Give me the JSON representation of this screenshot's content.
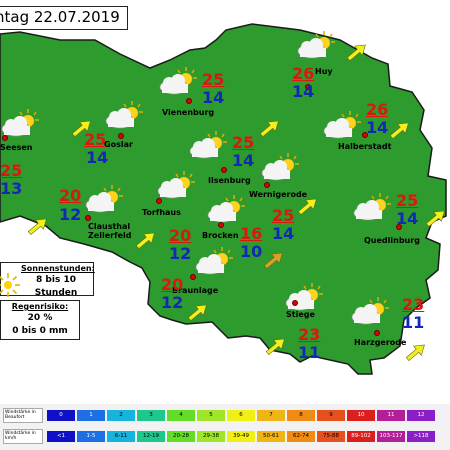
{
  "title": "ntag 22.07.2019",
  "map": {
    "region_color": "#2e9b2e",
    "border_color": "#1a1a1a",
    "arrow_color": "#f0f021",
    "arrow_strong_color": "#d8a028",
    "tmax_color": "#d8190e",
    "tmin_color": "#1228b6"
  },
  "cities": [
    {
      "id": "seesen",
      "name": "Seesen",
      "tmax": "25",
      "tmin": "13"
    },
    {
      "id": "goslar",
      "name": "Goslar",
      "tmax": "25",
      "tmin": "14"
    },
    {
      "id": "vienenburg",
      "name": "Vienenburg",
      "tmax": "25",
      "tmin": "14"
    },
    {
      "id": "ilsenburg",
      "name": "Ilsenburg",
      "tmax": "25",
      "tmin": "14"
    },
    {
      "id": "huy",
      "name": "Huy",
      "tmax": "26",
      "tmin": "14"
    },
    {
      "id": "halberstadt",
      "name": "Halberstadt",
      "tmax": "26",
      "tmin": "14"
    },
    {
      "id": "wernigerode",
      "name": "Wernigerode",
      "tmax": "25",
      "tmin": "14"
    },
    {
      "id": "clausthal",
      "name": "Clausthal Zellerfeld",
      "name_line1": "Clausthal",
      "name_line2": "Zellerfeld",
      "tmax": "20",
      "tmin": "12"
    },
    {
      "id": "torfhaus",
      "name": "Torfhaus",
      "tmax": "20",
      "tmin": "12"
    },
    {
      "id": "brocken",
      "name": "Brocken",
      "tmax": "16",
      "tmin": "10"
    },
    {
      "id": "braunlage",
      "name": "Braunlage",
      "tmax": "20",
      "tmin": "12"
    },
    {
      "id": "quedlinburg",
      "name": "Quedlinburg",
      "tmax": "25",
      "tmin": "14"
    },
    {
      "id": "stiege",
      "name": "Stiege",
      "tmax": "23",
      "tmin": "11"
    },
    {
      "id": "harzgerode",
      "name": "Harzgerode",
      "tmax": "23",
      "tmin": "11"
    }
  ],
  "sunshine": {
    "heading": "Sonnenstunden:",
    "value": "8 bis 10 Stunden",
    "icon": "sun-icon"
  },
  "rain": {
    "heading": "Regenrisiko:",
    "percent": "20 %",
    "amount": "0 bis 0 mm"
  },
  "legend": {
    "beaufort_label": "Windstärke in Beaufort",
    "kmh_label": "Windstärke in km/h",
    "beaufort": [
      "0",
      "1",
      "2",
      "3",
      "4",
      "5",
      "6",
      "7",
      "8",
      "9",
      "10",
      "11",
      "12"
    ],
    "kmh": [
      "<1",
      "1-5",
      "6-11",
      "12-19",
      "20-28",
      "29-38",
      "39-49",
      "50-61",
      "62-74",
      "75-88",
      "89-102",
      "103-117",
      ">118"
    ],
    "colors": [
      "#1010c8",
      "#1e6ee6",
      "#14b4dc",
      "#1ec88c",
      "#64dc28",
      "#a0e628",
      "#f0f014",
      "#f0b414",
      "#f08c14",
      "#e6501e",
      "#dc1e1e",
      "#b41e96",
      "#8c1ec8"
    ]
  }
}
